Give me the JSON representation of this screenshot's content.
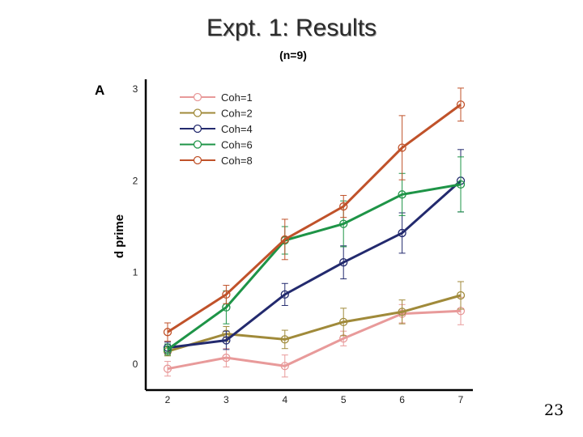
{
  "page": {
    "title": "Expt. 1: Results",
    "subtitle": "(n=9)",
    "page_number": "23"
  },
  "chart_data": {
    "type": "line",
    "panel_label": "A",
    "title": "",
    "xlabel": "",
    "ylabel": "d prime",
    "x": [
      2,
      3,
      4,
      5,
      6,
      7
    ],
    "xlim": [
      2,
      7
    ],
    "ylim": [
      0,
      3
    ],
    "yticks": [
      0,
      1,
      2,
      3
    ],
    "grid": false,
    "legend": "top-left",
    "series": [
      {
        "name": "Coh=1",
        "color": "#e89a9a",
        "values": [
          -0.05,
          0.07,
          -0.02,
          0.28,
          0.55,
          0.58
        ],
        "errors": [
          0.08,
          0.1,
          0.12,
          0.08,
          0.1,
          0.15
        ]
      },
      {
        "name": "Coh=2",
        "color": "#a08a3a",
        "values": [
          0.14,
          0.33,
          0.27,
          0.46,
          0.57,
          0.75
        ],
        "errors": [
          0.05,
          0.08,
          0.1,
          0.15,
          0.13,
          0.15
        ]
      },
      {
        "name": "Coh=4",
        "color": "#232a6e",
        "values": [
          0.18,
          0.26,
          0.76,
          1.11,
          1.43,
          2.0
        ],
        "errors": [
          0.06,
          0.1,
          0.12,
          0.18,
          0.22,
          0.34
        ]
      },
      {
        "name": "Coh=6",
        "color": "#1e9447",
        "values": [
          0.16,
          0.62,
          1.35,
          1.53,
          1.85,
          1.96
        ],
        "errors": [
          0.06,
          0.18,
          0.15,
          0.25,
          0.23,
          0.3
        ]
      },
      {
        "name": "Coh=8",
        "color": "#c0522a",
        "values": [
          0.35,
          0.76,
          1.36,
          1.72,
          2.36,
          2.83
        ],
        "errors": [
          0.1,
          0.1,
          0.22,
          0.12,
          0.35,
          0.18
        ]
      }
    ]
  }
}
